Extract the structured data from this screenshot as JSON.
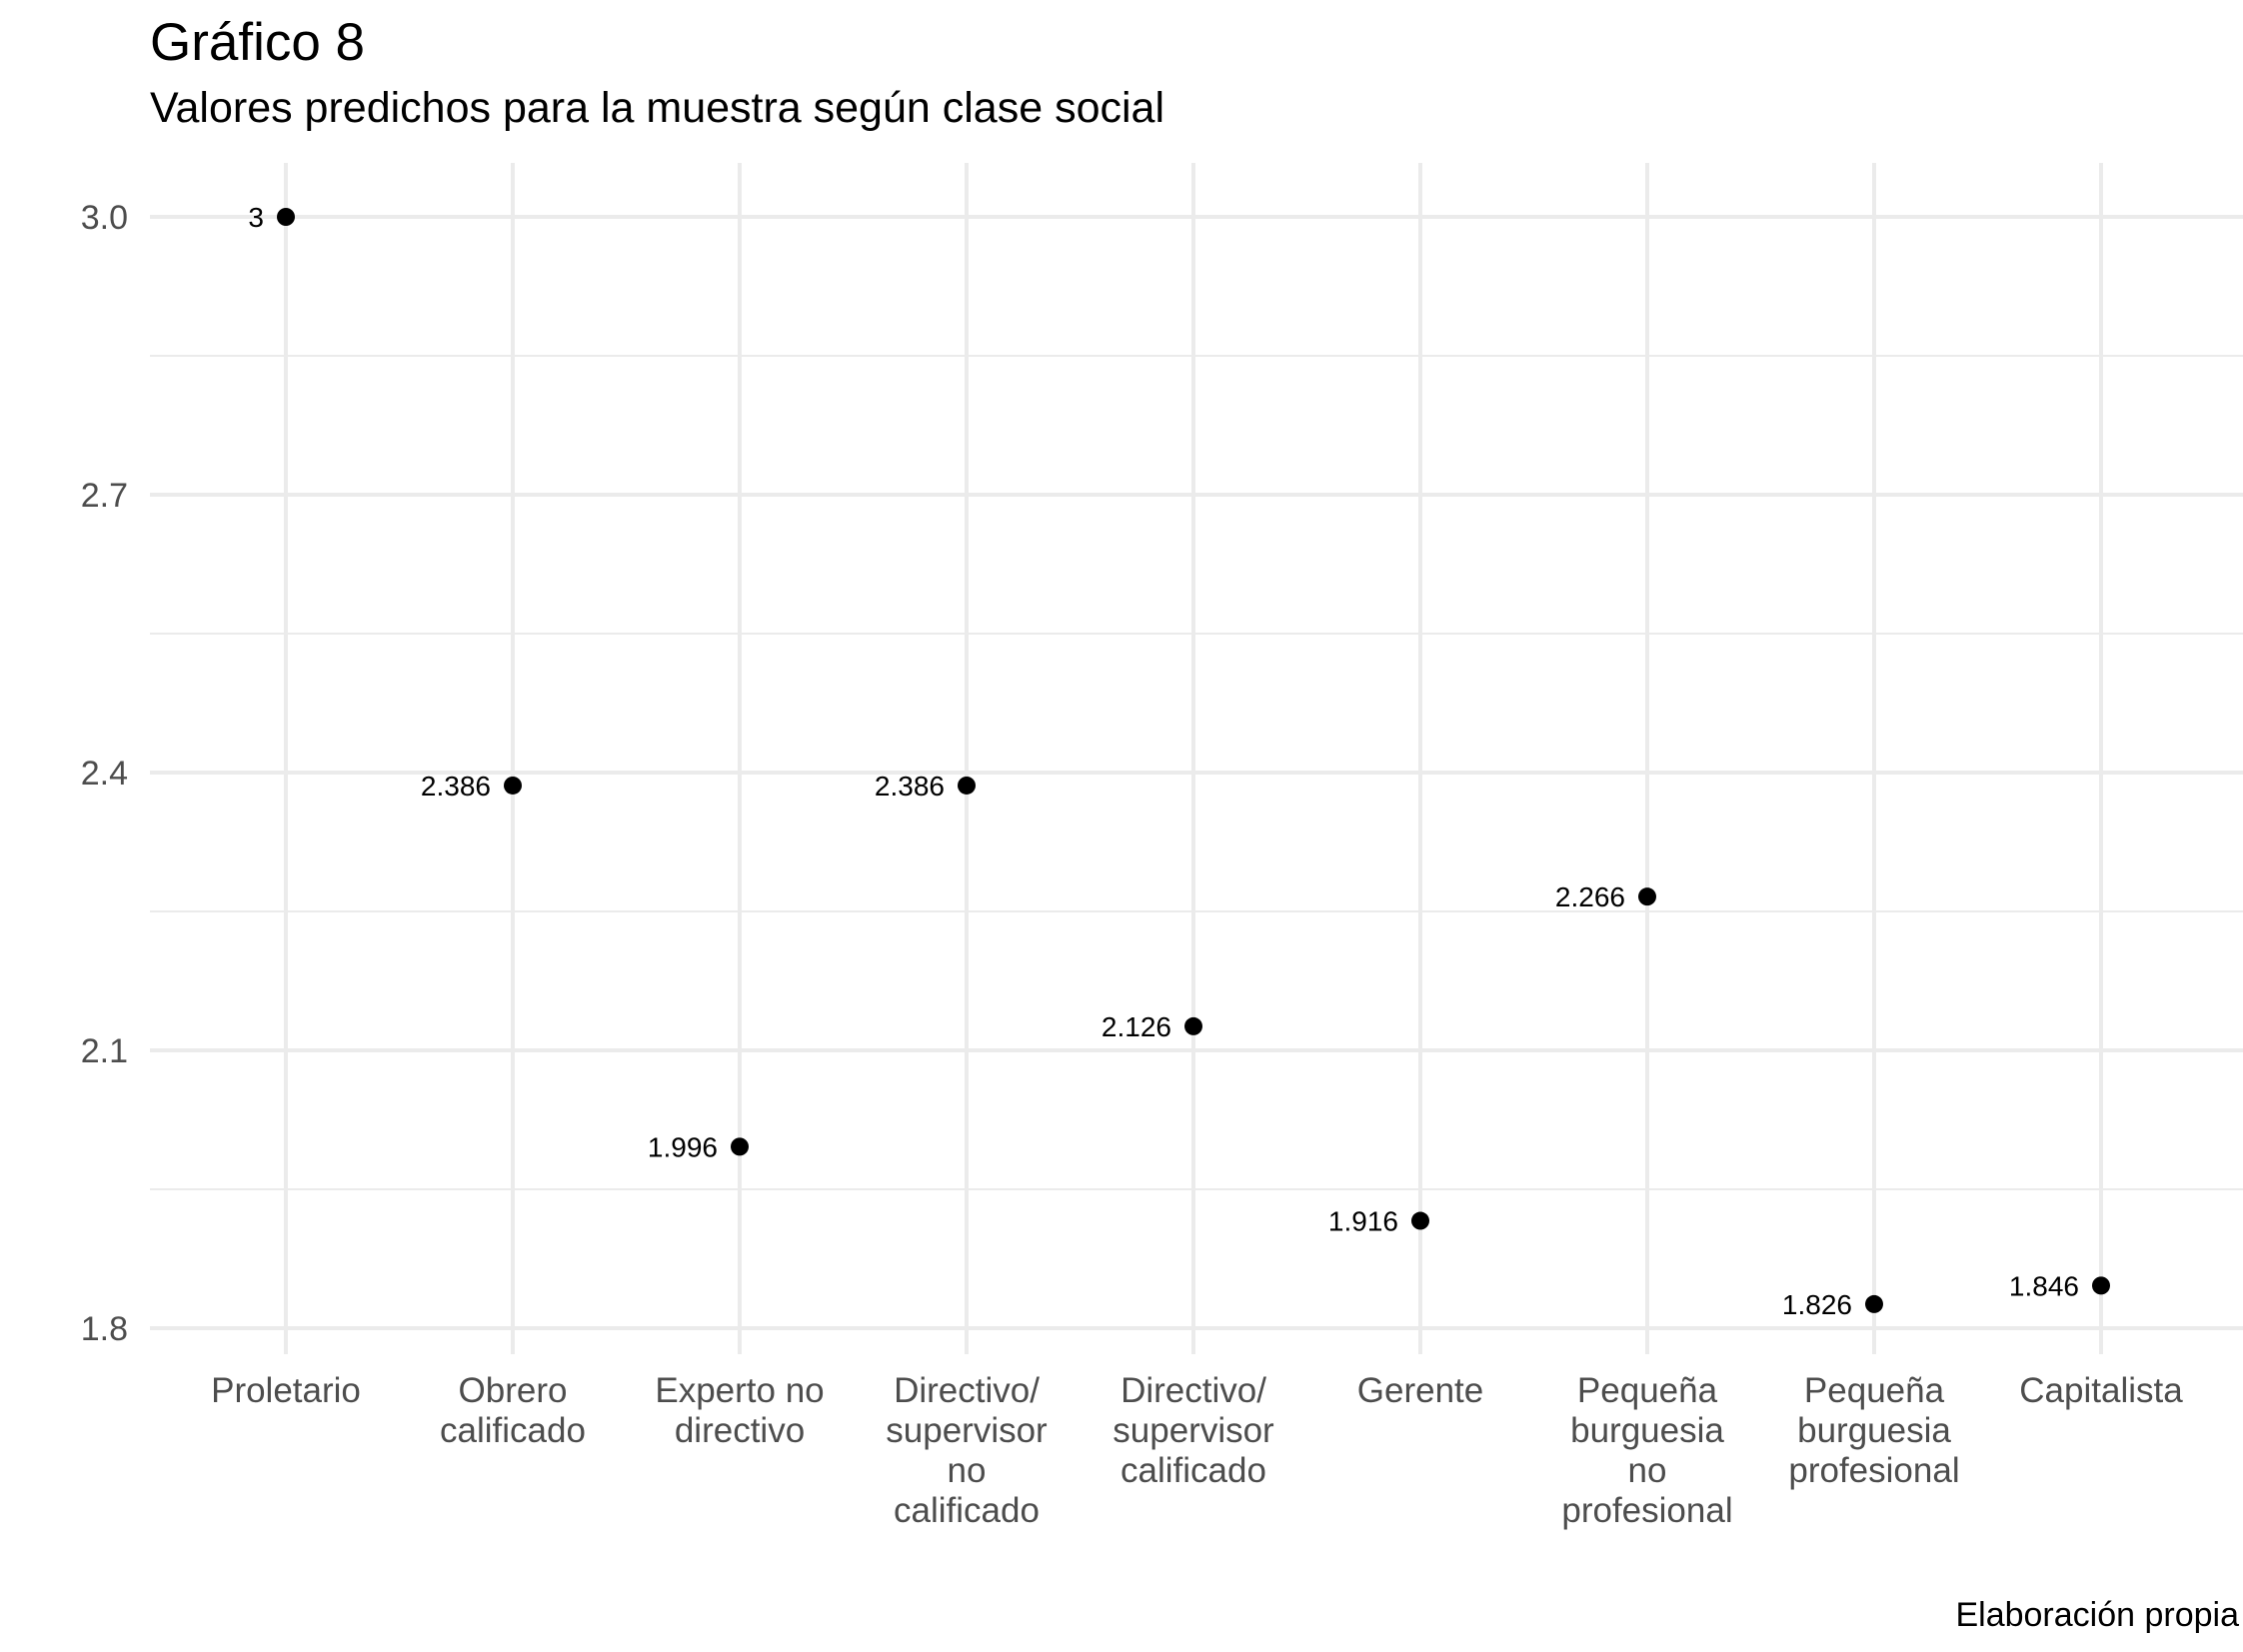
{
  "title": "Gráfico 8",
  "subtitle": "Valores predichos para la muestra según clase social",
  "caption": "Elaboración propia",
  "chart_data": {
    "type": "scatter",
    "title": "Gráfico 8",
    "subtitle": "Valores predichos para la muestra según clase social",
    "xlabel": "",
    "ylabel": "",
    "ylim": [
      1.8,
      3.0
    ],
    "yticks": [
      1.8,
      2.1,
      2.4,
      2.7,
      3.0
    ],
    "ytick_labels": [
      "1.8",
      "2.1",
      "2.4",
      "2.7",
      "3.0"
    ],
    "grid": true,
    "legend": "none",
    "categories": [
      [
        "Proletario"
      ],
      [
        "Obrero",
        "calificado"
      ],
      [
        "Experto no",
        "directivo"
      ],
      [
        "Directivo/",
        "supervisor",
        "no",
        "calificado"
      ],
      [
        "Directivo/",
        "supervisor",
        "calificado"
      ],
      [
        "Gerente"
      ],
      [
        "Pequeña",
        "burguesia",
        "no",
        "profesional"
      ],
      [
        "Pequeña",
        "burguesia",
        "profesional"
      ],
      [
        "Capitalista"
      ]
    ],
    "values": [
      3.0,
      2.386,
      1.996,
      2.386,
      2.126,
      1.916,
      2.266,
      1.826,
      1.846
    ],
    "data_labels": [
      "3",
      "2.386",
      "1.996",
      "2.386",
      "2.126",
      "1.916",
      "2.266",
      "1.826",
      "1.846"
    ],
    "colors": {
      "point": "#000000",
      "grid": "#ebebeb",
      "axis_text": "#4d4d4d"
    }
  }
}
